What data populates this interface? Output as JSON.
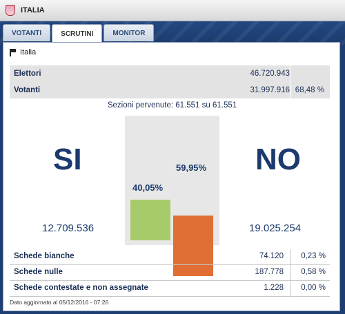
{
  "window": {
    "title": "ITALIA"
  },
  "tabs": [
    {
      "label": "VOTANTI",
      "active": false
    },
    {
      "label": "SCRUTINI",
      "active": true
    },
    {
      "label": "MONITOR",
      "active": false
    }
  ],
  "location": {
    "label": "Italia"
  },
  "totals": {
    "elettori": {
      "label": "Elettori",
      "value": "46.720.943"
    },
    "votanti": {
      "label": "Votanti",
      "value": "31.997.916",
      "percent": "68,48 %"
    }
  },
  "sezioni": "Sezioni pervenute: 61.551 su 61.551",
  "result": {
    "yes": {
      "label": "SI",
      "votes": "12.709.536",
      "percent_label": "40,05%",
      "percent": 40.05,
      "color": "#a7cb6a"
    },
    "no": {
      "label": "NO",
      "votes": "19.025.254",
      "percent_label": "59,95%",
      "percent": 59.95,
      "color": "#e06f35"
    }
  },
  "schede": [
    {
      "label": "Schede bianche",
      "value": "74.120",
      "percent": "0,23 %"
    },
    {
      "label": "Schede nulle",
      "value": "187.778",
      "percent": "0,58 %"
    },
    {
      "label": "Schede contestate e non assegnate",
      "value": "1.228",
      "percent": "0,00 %"
    }
  ],
  "updated": "Dato aggiornato al 05/12/2016 - 07:26"
}
